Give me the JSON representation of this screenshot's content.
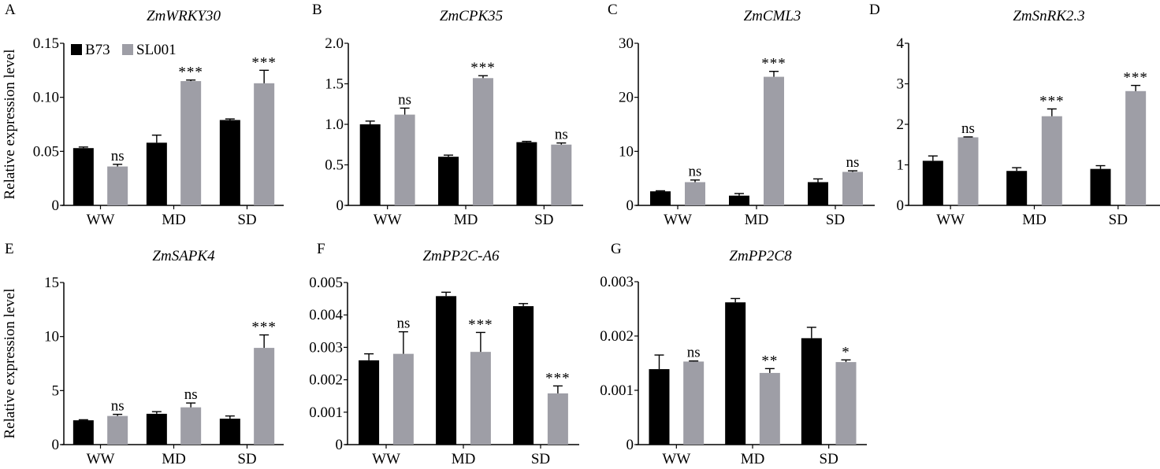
{
  "figure": {
    "ylabel": "Relative expression level",
    "legend": [
      {
        "name": "B73",
        "color": "#000000"
      },
      {
        "name": "SL001",
        "color": "#9e9ea6"
      }
    ],
    "legend_placement": "top-left of panel A"
  },
  "chart_data": [
    {
      "type": "bar",
      "panel": "A",
      "title": "ZmWRKY30",
      "categories": [
        "WW",
        "MD",
        "SD"
      ],
      "ylim": [
        0,
        0.15
      ],
      "yticks": [
        "0",
        "0.05",
        "0.10",
        "0.15"
      ],
      "ytick_values": [
        0,
        0.05,
        0.1,
        0.15
      ],
      "ylabel": "Relative expression level",
      "series": [
        {
          "name": "B73",
          "values": [
            0.053,
            0.058,
            0.079
          ],
          "errors": [
            0.001,
            0.007,
            0.001
          ]
        },
        {
          "name": "SL001",
          "values": [
            0.036,
            0.115,
            0.113
          ],
          "errors": [
            0.002,
            0.001,
            0.012
          ]
        }
      ],
      "significance": [
        "ns",
        "***",
        "***"
      ]
    },
    {
      "type": "bar",
      "panel": "B",
      "title": "ZmCPK35",
      "categories": [
        "WW",
        "MD",
        "SD"
      ],
      "ylim": [
        0,
        2.0
      ],
      "yticks": [
        "0",
        "0.5",
        "1.0",
        "1.5",
        "2.0"
      ],
      "ytick_values": [
        0,
        0.5,
        1.0,
        1.5,
        2.0
      ],
      "series": [
        {
          "name": "B73",
          "values": [
            1.0,
            0.6,
            0.78
          ],
          "errors": [
            0.04,
            0.02,
            0.01
          ]
        },
        {
          "name": "SL001",
          "values": [
            1.12,
            1.57,
            0.75
          ],
          "errors": [
            0.08,
            0.03,
            0.02
          ]
        }
      ],
      "significance": [
        "ns",
        "***",
        "ns"
      ]
    },
    {
      "type": "bar",
      "panel": "C",
      "title": "ZmCML3",
      "categories": [
        "WW",
        "MD",
        "SD"
      ],
      "ylim": [
        0,
        30
      ],
      "yticks": [
        "0",
        "10",
        "20",
        "30"
      ],
      "ytick_values": [
        0,
        10,
        20,
        30
      ],
      "series": [
        {
          "name": "B73",
          "values": [
            2.6,
            1.8,
            4.3
          ],
          "errors": [
            0.1,
            0.4,
            0.6
          ]
        },
        {
          "name": "SL001",
          "values": [
            4.3,
            23.8,
            6.2
          ],
          "errors": [
            0.4,
            1.0,
            0.2
          ]
        }
      ],
      "significance": [
        "ns",
        "***",
        "ns"
      ]
    },
    {
      "type": "bar",
      "panel": "D",
      "title": "ZmSnRK2.3",
      "categories": [
        "WW",
        "MD",
        "SD"
      ],
      "ylim": [
        0,
        4
      ],
      "yticks": [
        "0",
        "1",
        "2",
        "3",
        "4"
      ],
      "ytick_values": [
        0,
        1,
        2,
        3,
        4
      ],
      "series": [
        {
          "name": "B73",
          "values": [
            1.1,
            0.85,
            0.9
          ],
          "errors": [
            0.12,
            0.08,
            0.08
          ]
        },
        {
          "name": "SL001",
          "values": [
            1.68,
            2.2,
            2.82
          ],
          "errors": [
            0.01,
            0.18,
            0.14
          ]
        }
      ],
      "significance": [
        "ns",
        "***",
        "***"
      ]
    },
    {
      "type": "bar",
      "panel": "E",
      "title": "ZmSAPK4",
      "categories": [
        "WW",
        "MD",
        "SD"
      ],
      "ylim": [
        0,
        15
      ],
      "yticks": [
        "0",
        "5",
        "10",
        "15"
      ],
      "ytick_values": [
        0,
        5,
        10,
        15
      ],
      "ylabel": "Relative expression level",
      "series": [
        {
          "name": "B73",
          "values": [
            2.25,
            2.85,
            2.4
          ],
          "errors": [
            0.05,
            0.2,
            0.25
          ]
        },
        {
          "name": "SL001",
          "values": [
            2.65,
            3.45,
            8.95
          ],
          "errors": [
            0.15,
            0.4,
            1.2
          ]
        }
      ],
      "significance": [
        "ns",
        "ns",
        "***"
      ]
    },
    {
      "type": "bar",
      "panel": "F",
      "title": "ZmPP2C-A6",
      "categories": [
        "WW",
        "MD",
        "SD"
      ],
      "ylim": [
        0,
        0.005
      ],
      "yticks": [
        "0",
        "0.001",
        "0.002",
        "0.003",
        "0.004",
        "0.005"
      ],
      "ytick_values": [
        0,
        0.001,
        0.002,
        0.003,
        0.004,
        0.005
      ],
      "series": [
        {
          "name": "B73",
          "values": [
            0.0026,
            0.00458,
            0.00427
          ],
          "errors": [
            0.0002,
            0.00012,
            8e-05
          ]
        },
        {
          "name": "SL001",
          "values": [
            0.0028,
            0.00286,
            0.00158
          ],
          "errors": [
            0.00068,
            0.0006,
            0.00023
          ]
        }
      ],
      "significance": [
        "ns",
        "***",
        "***"
      ]
    },
    {
      "type": "bar",
      "panel": "G",
      "title": "ZmPP2C8",
      "categories": [
        "WW",
        "MD",
        "SD"
      ],
      "ylim": [
        0,
        0.003
      ],
      "yticks": [
        "0",
        "0.001",
        "0.002",
        "0.003"
      ],
      "ytick_values": [
        0,
        0.001,
        0.002,
        0.003
      ],
      "series": [
        {
          "name": "B73",
          "values": [
            0.00139,
            0.00262,
            0.00196
          ],
          "errors": [
            0.00026,
            7e-05,
            0.0002
          ]
        },
        {
          "name": "SL001",
          "values": [
            0.00153,
            0.00132,
            0.00152
          ],
          "errors": [
            1e-05,
            8e-05,
            4e-05
          ]
        }
      ],
      "significance": [
        "ns",
        "**",
        "*"
      ]
    }
  ]
}
